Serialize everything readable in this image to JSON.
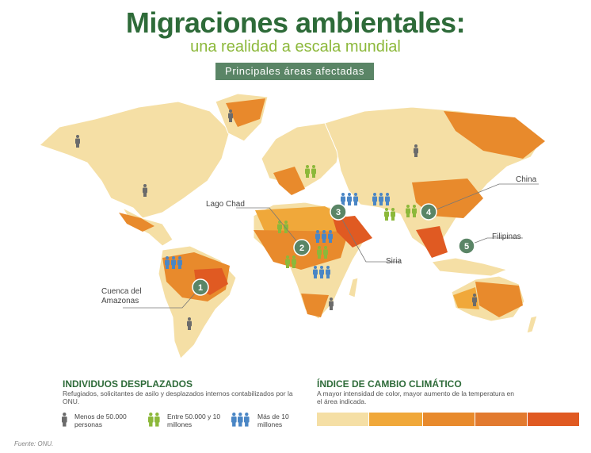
{
  "header": {
    "title": "Migraciones ambientales:",
    "subtitle": "una realidad a escala mundial",
    "banner": "Principales áreas afectadas"
  },
  "areas": [
    {
      "num": "1",
      "label": "Cuenca del Amazonas"
    },
    {
      "num": "2",
      "label": "Lago Chad"
    },
    {
      "num": "3",
      "label": "Siria"
    },
    {
      "num": "4",
      "label": "China"
    },
    {
      "num": "5",
      "label": "Filipinas"
    }
  ],
  "displaced": {
    "title": "INDIVIDUOS DESPLAZADOS",
    "description": "Refugiados, solicitantes de asilo y desplazados internos contabilizados por la ONU.",
    "legend": [
      {
        "label": "Menos de 50.000 personas",
        "color": "#6b6b6b"
      },
      {
        "label": "Entre 50.000 y 10 millones",
        "color": "#8cb83a"
      },
      {
        "label": "Más de 10 millones",
        "color": "#4a86c5"
      }
    ]
  },
  "climate": {
    "title": "ÍNDICE DE CAMBIO CLIMÁTICO",
    "description": "A mayor intensidad de color, mayor aumento de la temperatura en el área indicada.",
    "scale_colors": [
      "#f5dfa5",
      "#f0a83a",
      "#e88a2c",
      "#e27a2f",
      "#e05a22"
    ]
  },
  "footer": {
    "source": "Fuente: ONU."
  },
  "colors": {
    "title": "#2e6b39",
    "subtitle": "#8cb83a",
    "badge": "#5a8566",
    "land": "#f5dfa5"
  }
}
